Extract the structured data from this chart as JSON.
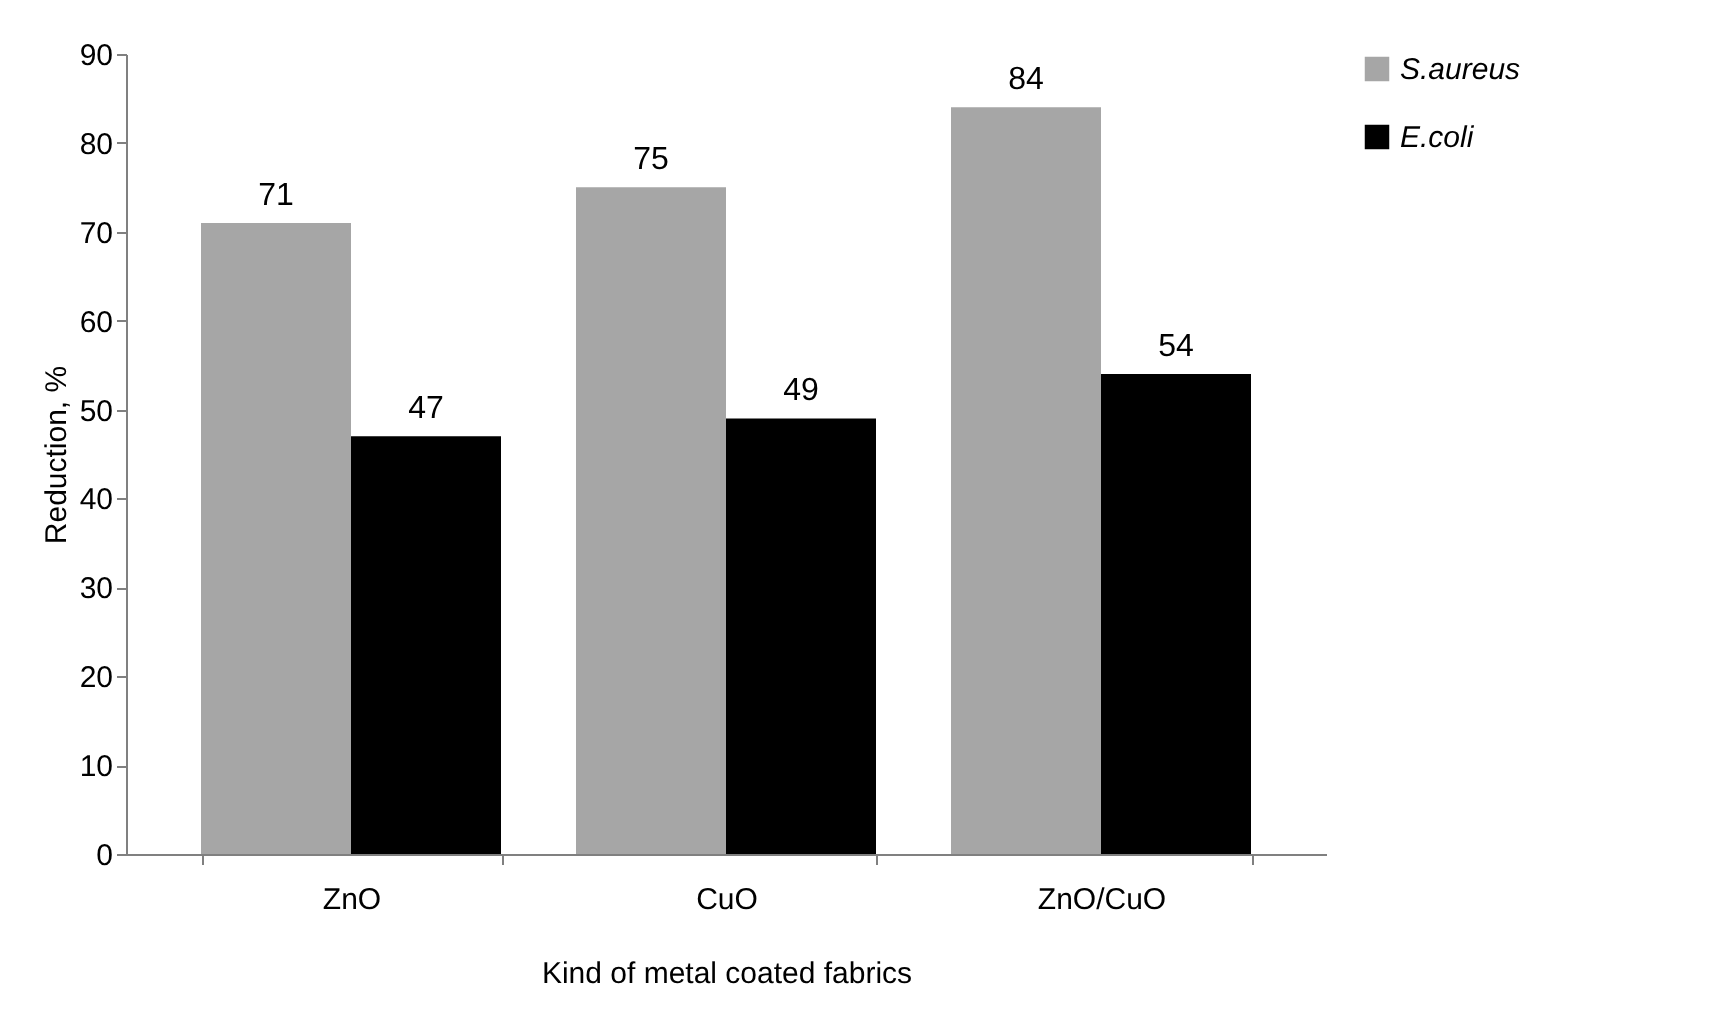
{
  "chart_data": {
    "type": "bar",
    "xlabel": "Kind of metal coated fabrics",
    "ylabel": "Reduction, %",
    "categories": [
      "ZnO",
      "CuO",
      "ZnO/CuO"
    ],
    "series": [
      {
        "name": "S.aureus",
        "color": "#a6a6a6",
        "values": [
          71,
          75,
          84
        ]
      },
      {
        "name": "E.coli",
        "color": "#000000",
        "values": [
          47,
          49,
          54
        ]
      }
    ],
    "ylim": [
      0,
      90
    ],
    "yticks": [
      0,
      10,
      20,
      30,
      40,
      50,
      60,
      70,
      80,
      90
    ],
    "data_labels": true,
    "grid": false,
    "legend": "right"
  }
}
